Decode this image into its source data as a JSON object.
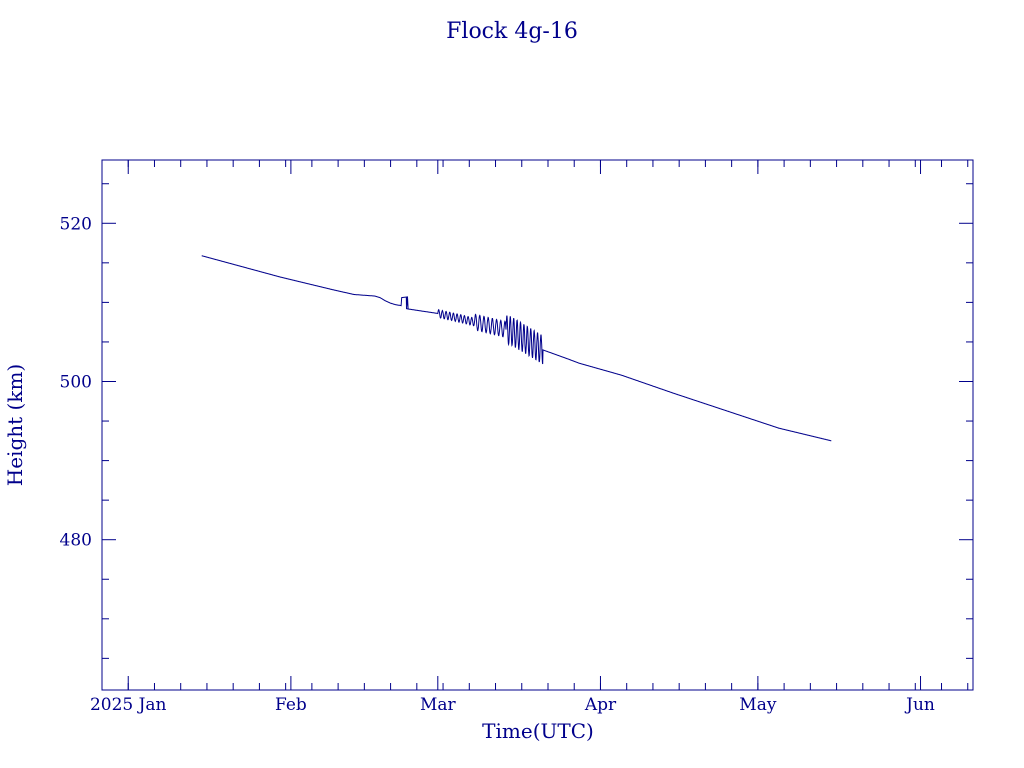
{
  "chart_data": {
    "type": "line",
    "title": "Flock 4g-16",
    "xlabel": "Time(UTC)",
    "ylabel": "Height (km)",
    "xlim": [
      "2024-12-27",
      "2025-06-11"
    ],
    "ylim": [
      461,
      528
    ],
    "x_ticks": [
      {
        "date": "2025-01-01",
        "label": "2025 Jan"
      },
      {
        "date": "2025-02-01",
        "label": "Feb"
      },
      {
        "date": "2025-03-01",
        "label": "Mar"
      },
      {
        "date": "2025-04-01",
        "label": "Apr"
      },
      {
        "date": "2025-05-01",
        "label": "May"
      },
      {
        "date": "2025-06-01",
        "label": "Jun"
      }
    ],
    "y_ticks": [
      {
        "value": 480,
        "label": "480"
      },
      {
        "value": 500,
        "label": "500"
      },
      {
        "value": 520,
        "label": "520"
      }
    ],
    "y_minor_step": 5,
    "x_minor_step_days": 5,
    "grid": false,
    "color": "#00008b",
    "series": [
      {
        "segments": [
          {
            "from": "2025-01-15",
            "to": "2025-02-17",
            "x": [
              "2025-01-15",
              "2025-01-20",
              "2025-01-25",
              "2025-01-30",
              "2025-02-04",
              "2025-02-09",
              "2025-02-13",
              "2025-02-17"
            ],
            "y": [
              515.9,
              515.0,
              514.1,
              513.2,
              512.4,
              511.6,
              511.0,
              510.8
            ]
          },
          {
            "from": "2025-02-17",
            "to": "2025-02-22",
            "x": [
              "2025-02-17",
              "2025-02-18",
              "2025-02-19",
              "2025-02-20",
              "2025-02-21",
              "2025-02-22"
            ],
            "y": [
              510.8,
              510.6,
              510.2,
              509.9,
              509.7,
              509.6
            ]
          },
          {
            "from": "2025-02-22",
            "to": "2025-02-23",
            "x": [
              "2025-02-22",
              "2025-02-22",
              "2025-02-23",
              "2025-02-23"
            ],
            "y": [
              509.6,
              510.6,
              510.7,
              509.2
            ]
          },
          {
            "from": "2025-02-23",
            "to": "2025-03-28",
            "x": [
              "2025-02-23",
              "2025-03-01",
              "2025-03-05",
              "2025-03-10",
              "2025-03-15",
              "2025-03-21",
              "2025-03-26",
              "2025-03-28"
            ],
            "y": [
              509.2,
              508.6,
              508.0,
              507.2,
              506.4,
              504.0,
              502.8,
              502.3
            ]
          },
          {
            "from": "2025-03-28",
            "to": "2025-05-15",
            "x": [
              "2025-03-28",
              "2025-04-05",
              "2025-04-15",
              "2025-04-25",
              "2025-05-05",
              "2025-05-15"
            ],
            "y": [
              502.3,
              500.8,
              498.5,
              496.3,
              494.1,
              492.5
            ]
          }
        ],
        "oscillations": [
          {
            "from": "2025-03-01",
            "to": "2025-03-08",
            "period_days": 0.7,
            "amplitude_km": 0.5
          },
          {
            "from": "2025-03-08",
            "to": "2025-03-14",
            "period_days": 0.8,
            "amplitude_km": 1.0
          },
          {
            "from": "2025-03-14",
            "to": "2025-03-21",
            "period_days": 0.65,
            "amplitude_km": 1.8
          }
        ]
      }
    ]
  }
}
